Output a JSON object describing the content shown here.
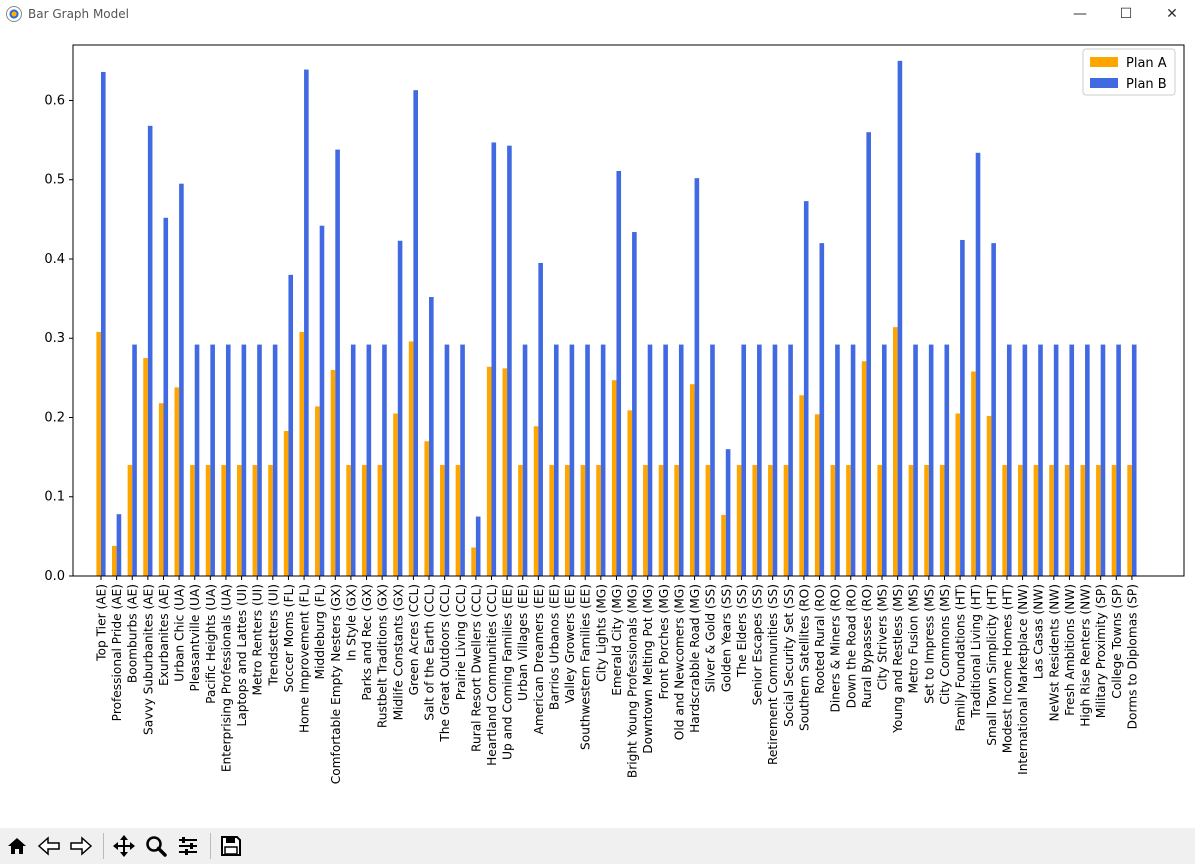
{
  "window": {
    "title": "Bar Graph Model",
    "minimize_glyph": "—",
    "maximize_glyph": "☐",
    "close_glyph": "✕"
  },
  "toolbar": {
    "icons": [
      "home-icon",
      "back-arrow-icon",
      "forward-arrow-icon",
      "pan-icon",
      "zoom-icon",
      "configure-subplots-icon",
      "save-icon"
    ]
  },
  "chart_data": {
    "type": "bar",
    "ylim": [
      0,
      0.67
    ],
    "yticks": [
      "0.0",
      "0.1",
      "0.2",
      "0.3",
      "0.4",
      "0.5",
      "0.6"
    ],
    "legend_position": "top-right",
    "grid": false,
    "categories": [
      "Top Tier (AE)",
      "Professional Pride (AE)",
      "Boomburbs (AE)",
      "Savvy Suburbanites (AE)",
      "Exurbanites (AE)",
      "Urban Chic (UA)",
      "Pleasantville (UA)",
      "Pacific Heights (UA)",
      "Enterprising Professionals (UA)",
      "Laptops and Lattes (UI)",
      "Metro Renters (UI)",
      "Trendsetters (UI)",
      "Soccer Moms (FL)",
      "Home Improvement (FL)",
      "Middleburg (FL)",
      "Comfortable Empty Nesters (GX)",
      "In Style (GX)",
      "Parks and Rec (GX)",
      "Rustbelt Traditions (GX)",
      "Midlife Constants (GX)",
      "Green Acres (CCL)",
      "Salt of the Earth (CCL)",
      "The Great Outdoors (CCL)",
      "Prairie Living (CCL)",
      "Rural Resort Dwellers (CCL)",
      "Heartland Communities (CCL)",
      "Up and Coming Families (EE)",
      "Urban Villages (EE)",
      "American Dreamers (EE)",
      "Barrios Urbanos (EE)",
      "Valley Growers (EE)",
      "Southwestern Families (EE)",
      "City Lights (MG)",
      "Emerald City (MG)",
      "Bright Young Professionals (MG)",
      "Downtown Melting Pot (MG)",
      "Front Porches (MG)",
      "Old and Newcomers (MG)",
      "Hardscrabble Road (MG)",
      "Silver & Gold (SS)",
      "Golden Years (SS)",
      "The Elders (SS)",
      "Senior Escapes (SS)",
      "Retirement Communities (SS)",
      "Social Security Set (SS)",
      "Southern Satellites (RO)",
      "Rooted Rural (RO)",
      "Diners & Miners (RO)",
      "Down the Road (RO)",
      "Rural Bypasses (RO)",
      "City Strivers (MS)",
      "Young and Restless (MS)",
      "Metro Fusion (MS)",
      "Set to Impress (MS)",
      "City Commons (MS)",
      "Family Foundations (HT)",
      "Traditional Living (HT)",
      "Small Town Simplicity (HT)",
      "Modest Income Homes (HT)",
      "International Marketplace (NW)",
      "Las Casas (NW)",
      "NeWst Residents (NW)",
      "Fresh Ambitions (NW)",
      "High Rise Renters (NW)",
      "Military Proximity (SP)",
      "College Towns (SP)",
      "Dorms to Diplomas (SP)"
    ],
    "series": [
      {
        "name": "Plan A",
        "color": "#FFA500",
        "values": [
          0.308,
          0.038,
          0.14,
          0.275,
          0.218,
          0.238,
          0.14,
          0.14,
          0.14,
          0.14,
          0.14,
          0.14,
          0.183,
          0.308,
          0.214,
          0.26,
          0.14,
          0.14,
          0.14,
          0.205,
          0.296,
          0.17,
          0.14,
          0.14,
          0.036,
          0.264,
          0.262,
          0.14,
          0.189,
          0.14,
          0.14,
          0.14,
          0.14,
          0.247,
          0.209,
          0.14,
          0.14,
          0.14,
          0.242,
          0.14,
          0.077,
          0.14,
          0.14,
          0.14,
          0.14,
          0.228,
          0.204,
          0.14,
          0.14,
          0.271,
          0.14,
          0.314,
          0.14,
          0.14,
          0.14,
          0.205,
          0.258,
          0.202,
          0.14,
          0.14,
          0.14,
          0.14,
          0.14,
          0.14,
          0.14,
          0.14,
          0.14
        ]
      },
      {
        "name": "Plan B",
        "color": "#4169E1",
        "values": [
          0.636,
          0.078,
          0.292,
          0.568,
          0.452,
          0.495,
          0.292,
          0.292,
          0.292,
          0.292,
          0.292,
          0.292,
          0.38,
          0.639,
          0.442,
          0.538,
          0.292,
          0.292,
          0.292,
          0.423,
          0.613,
          0.352,
          0.292,
          0.292,
          0.075,
          0.547,
          0.543,
          0.292,
          0.395,
          0.292,
          0.292,
          0.292,
          0.292,
          0.511,
          0.434,
          0.292,
          0.292,
          0.292,
          0.502,
          0.292,
          0.16,
          0.292,
          0.292,
          0.292,
          0.292,
          0.473,
          0.42,
          0.292,
          0.292,
          0.56,
          0.292,
          0.65,
          0.292,
          0.292,
          0.292,
          0.424,
          0.534,
          0.42,
          0.292,
          0.292,
          0.292,
          0.292,
          0.292,
          0.292,
          0.292,
          0.292,
          0.292
        ]
      }
    ]
  }
}
